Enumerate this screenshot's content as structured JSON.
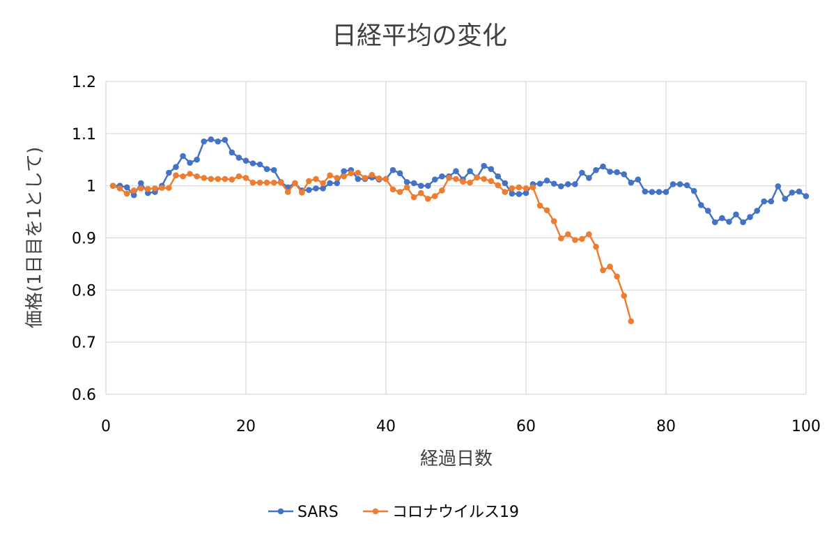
{
  "chart_data": {
    "type": "line",
    "title": "日経平均の変化",
    "xlabel": "経過日数",
    "ylabel": "価格(1日目を1として)",
    "xlim": [
      0,
      100
    ],
    "ylim": [
      0.6,
      1.2
    ],
    "xticks": [
      0,
      20,
      40,
      60,
      80,
      100
    ],
    "yticks": [
      0.6,
      0.7,
      0.8,
      0.9,
      1,
      1.1,
      1.2
    ],
    "ytick_labels": [
      "0.6",
      "0.7",
      "0.8",
      "0.9",
      "1",
      "1.1",
      "1.2"
    ],
    "grid": "both",
    "legend": "bottom",
    "series": [
      {
        "name": "SARS",
        "color": "#4472C4",
        "x": [
          1,
          2,
          3,
          4,
          5,
          6,
          7,
          8,
          9,
          10,
          11,
          12,
          13,
          14,
          15,
          16,
          17,
          18,
          19,
          20,
          21,
          22,
          23,
          24,
          25,
          26,
          27,
          28,
          29,
          30,
          31,
          32,
          33,
          34,
          35,
          36,
          37,
          38,
          39,
          40,
          41,
          42,
          43,
          44,
          45,
          46,
          47,
          48,
          49,
          50,
          51,
          52,
          53,
          54,
          55,
          56,
          57,
          58,
          59,
          60,
          61,
          62,
          63,
          64,
          65,
          66,
          67,
          68,
          69,
          70,
          71,
          72,
          73,
          74,
          75,
          76,
          77,
          78,
          79,
          80,
          81,
          82,
          83,
          84,
          85,
          86,
          87,
          88,
          89,
          90,
          91,
          92,
          93,
          94,
          95,
          96,
          97,
          98,
          99,
          100
        ],
        "y": [
          1.0,
          1.0,
          0.997,
          0.982,
          1.005,
          0.986,
          0.988,
          1.0,
          1.025,
          1.036,
          1.057,
          1.044,
          1.05,
          1.085,
          1.089,
          1.085,
          1.088,
          1.064,
          1.054,
          1.048,
          1.043,
          1.041,
          1.032,
          1.03,
          1.007,
          0.997,
          1.005,
          0.991,
          0.992,
          0.995,
          0.995,
          1.005,
          1.005,
          1.028,
          1.03,
          1.013,
          1.013,
          1.016,
          1.012,
          1.013,
          1.03,
          1.024,
          1.007,
          1.005,
          1.0,
          1.0,
          1.012,
          1.018,
          1.018,
          1.028,
          1.012,
          1.028,
          1.016,
          1.038,
          1.032,
          1.018,
          1.005,
          0.985,
          0.984,
          0.986,
          1.003,
          1.004,
          1.01,
          1.004,
          0.999,
          1.003,
          1.003,
          1.025,
          1.015,
          1.03,
          1.037,
          1.027,
          1.026,
          1.022,
          1.006,
          1.012,
          0.989,
          0.988,
          0.988,
          0.988,
          1.003,
          1.003,
          1.001,
          0.99,
          0.963,
          0.952,
          0.93,
          0.938,
          0.931,
          0.945,
          0.93,
          0.94,
          0.952,
          0.97,
          0.97,
          0.999,
          0.975,
          0.987,
          0.989,
          0.98
        ]
      },
      {
        "name": "コロナウイルス19",
        "color": "#ED7D31",
        "x": [
          1,
          2,
          3,
          4,
          5,
          6,
          7,
          8,
          9,
          10,
          11,
          12,
          13,
          14,
          15,
          16,
          17,
          18,
          19,
          20,
          21,
          22,
          23,
          24,
          25,
          26,
          27,
          28,
          29,
          30,
          31,
          32,
          33,
          34,
          35,
          36,
          37,
          38,
          39,
          40,
          41,
          42,
          43,
          44,
          45,
          46,
          47,
          48,
          49,
          50,
          51,
          52,
          53,
          54,
          55,
          56,
          57,
          58,
          59,
          60,
          61,
          62,
          63,
          64,
          65,
          66,
          67,
          68,
          69,
          70,
          71,
          72,
          73,
          74,
          75
        ],
        "y": [
          1.0,
          0.995,
          0.985,
          0.991,
          0.995,
          0.994,
          0.995,
          0.996,
          0.996,
          1.02,
          1.018,
          1.023,
          1.018,
          1.015,
          1.013,
          1.013,
          1.013,
          1.012,
          1.018,
          1.015,
          1.006,
          1.006,
          1.006,
          1.006,
          1.006,
          0.988,
          1.005,
          0.987,
          1.009,
          1.013,
          1.005,
          1.02,
          1.015,
          1.018,
          1.024,
          1.025,
          1.015,
          1.021,
          1.014,
          1.013,
          0.993,
          0.988,
          0.997,
          0.978,
          0.986,
          0.975,
          0.98,
          0.991,
          1.015,
          1.013,
          1.008,
          1.006,
          1.016,
          1.013,
          1.009,
          1.001,
          0.988,
          0.995,
          0.997,
          0.995,
          0.997,
          0.962,
          0.953,
          0.932,
          0.899,
          0.907,
          0.896,
          0.898,
          0.907,
          0.883,
          0.838,
          0.845,
          0.826,
          0.789,
          0.74
        ]
      }
    ]
  }
}
